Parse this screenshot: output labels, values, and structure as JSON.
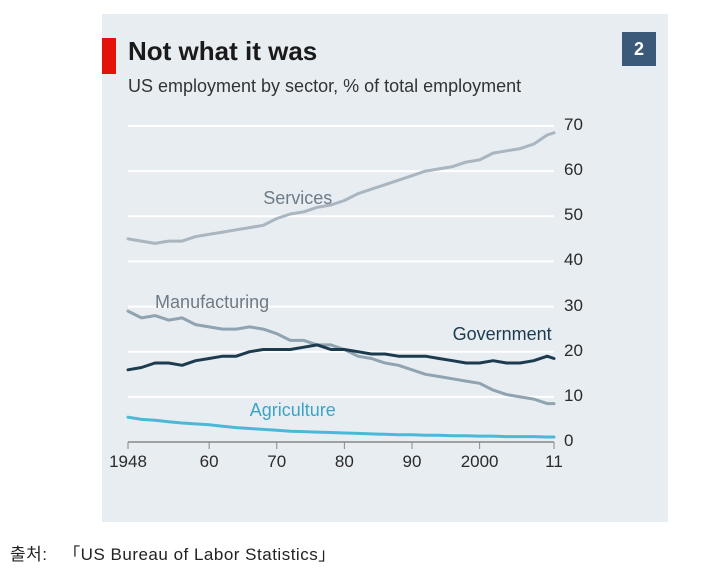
{
  "accent_red": "#e3120b",
  "badge_bg": "#3b5a7a",
  "chart": {
    "type": "line",
    "title": "Not what it was",
    "subtitle": "US employment by sector, % of total employment",
    "badge": "2",
    "background_color": "#e8edf2",
    "grid_color": "#ffffff",
    "axis_color": "#888888",
    "title_fontsize": 26,
    "subtitle_fontsize": 18,
    "tick_fontsize": 17,
    "label_fontsize": 18,
    "xlim": [
      1948,
      2011
    ],
    "ylim": [
      0,
      70
    ],
    "ytick_step": 10,
    "yticks": [
      0,
      10,
      20,
      30,
      40,
      50,
      60,
      70
    ],
    "xticks": [
      1948,
      1960,
      1970,
      1980,
      1990,
      2000,
      2011
    ],
    "xtick_labels": [
      "1948",
      "60",
      "70",
      "80",
      "90",
      "2000",
      "11"
    ],
    "line_width": 3,
    "series": {
      "services": {
        "label": "Services",
        "color": "#a9b5bf",
        "label_color": "#6e7b85",
        "label_pos": {
          "x": 1968,
          "y": 54
        },
        "points": [
          [
            1948,
            45
          ],
          [
            1950,
            44.5
          ],
          [
            1952,
            44
          ],
          [
            1954,
            44.5
          ],
          [
            1956,
            44.5
          ],
          [
            1958,
            45.5
          ],
          [
            1960,
            46
          ],
          [
            1962,
            46.5
          ],
          [
            1964,
            47
          ],
          [
            1966,
            47.5
          ],
          [
            1968,
            48
          ],
          [
            1970,
            49.5
          ],
          [
            1972,
            50.5
          ],
          [
            1974,
            51
          ],
          [
            1976,
            52
          ],
          [
            1978,
            52.5
          ],
          [
            1980,
            53.5
          ],
          [
            1982,
            55
          ],
          [
            1984,
            56
          ],
          [
            1986,
            57
          ],
          [
            1988,
            58
          ],
          [
            1990,
            59
          ],
          [
            1992,
            60
          ],
          [
            1994,
            60.5
          ],
          [
            1996,
            61
          ],
          [
            1998,
            62
          ],
          [
            2000,
            62.5
          ],
          [
            2002,
            64
          ],
          [
            2004,
            64.5
          ],
          [
            2006,
            65
          ],
          [
            2008,
            66
          ],
          [
            2010,
            68
          ],
          [
            2011,
            68.5
          ]
        ]
      },
      "manufacturing": {
        "label": "Manufacturing",
        "color": "#8fa3b0",
        "label_color": "#6e7b85",
        "label_pos": {
          "x": 1952,
          "y": 31
        },
        "points": [
          [
            1948,
            29
          ],
          [
            1950,
            27.5
          ],
          [
            1952,
            28
          ],
          [
            1954,
            27
          ],
          [
            1956,
            27.5
          ],
          [
            1958,
            26
          ],
          [
            1960,
            25.5
          ],
          [
            1962,
            25
          ],
          [
            1964,
            25
          ],
          [
            1966,
            25.5
          ],
          [
            1968,
            25
          ],
          [
            1970,
            24
          ],
          [
            1972,
            22.5
          ],
          [
            1974,
            22.5
          ],
          [
            1976,
            21.5
          ],
          [
            1978,
            21.5
          ],
          [
            1980,
            20.5
          ],
          [
            1982,
            19
          ],
          [
            1984,
            18.5
          ],
          [
            1986,
            17.5
          ],
          [
            1988,
            17
          ],
          [
            1990,
            16
          ],
          [
            1992,
            15
          ],
          [
            1994,
            14.5
          ],
          [
            1996,
            14
          ],
          [
            1998,
            13.5
          ],
          [
            2000,
            13
          ],
          [
            2002,
            11.5
          ],
          [
            2004,
            10.5
          ],
          [
            2006,
            10
          ],
          [
            2008,
            9.5
          ],
          [
            2010,
            8.5
          ],
          [
            2011,
            8.5
          ]
        ]
      },
      "government": {
        "label": "Government",
        "color": "#1d3b4f",
        "label_color": "#1d3b4f",
        "label_pos": {
          "x": 1996,
          "y": 24
        },
        "points": [
          [
            1948,
            16
          ],
          [
            1950,
            16.5
          ],
          [
            1952,
            17.5
          ],
          [
            1954,
            17.5
          ],
          [
            1956,
            17
          ],
          [
            1958,
            18
          ],
          [
            1960,
            18.5
          ],
          [
            1962,
            19
          ],
          [
            1964,
            19
          ],
          [
            1966,
            20
          ],
          [
            1968,
            20.5
          ],
          [
            1970,
            20.5
          ],
          [
            1972,
            20.5
          ],
          [
            1974,
            21
          ],
          [
            1976,
            21.5
          ],
          [
            1978,
            20.5
          ],
          [
            1980,
            20.5
          ],
          [
            1982,
            20
          ],
          [
            1984,
            19.5
          ],
          [
            1986,
            19.5
          ],
          [
            1988,
            19
          ],
          [
            1990,
            19
          ],
          [
            1992,
            19
          ],
          [
            1994,
            18.5
          ],
          [
            1996,
            18
          ],
          [
            1998,
            17.5
          ],
          [
            2000,
            17.5
          ],
          [
            2002,
            18
          ],
          [
            2004,
            17.5
          ],
          [
            2006,
            17.5
          ],
          [
            2008,
            18
          ],
          [
            2010,
            19
          ],
          [
            2011,
            18.5
          ]
        ]
      },
      "agriculture": {
        "label": "Agriculture",
        "color": "#4bb8d8",
        "label_color": "#3aa5c7",
        "label_pos": {
          "x": 1966,
          "y": 7
        },
        "points": [
          [
            1948,
            5.5
          ],
          [
            1950,
            5
          ],
          [
            1952,
            4.8
          ],
          [
            1954,
            4.5
          ],
          [
            1956,
            4.2
          ],
          [
            1958,
            4
          ],
          [
            1960,
            3.8
          ],
          [
            1962,
            3.5
          ],
          [
            1964,
            3.2
          ],
          [
            1966,
            3
          ],
          [
            1968,
            2.8
          ],
          [
            1970,
            2.6
          ],
          [
            1972,
            2.4
          ],
          [
            1974,
            2.3
          ],
          [
            1976,
            2.2
          ],
          [
            1978,
            2.1
          ],
          [
            1980,
            2
          ],
          [
            1982,
            1.9
          ],
          [
            1984,
            1.8
          ],
          [
            1986,
            1.7
          ],
          [
            1988,
            1.6
          ],
          [
            1990,
            1.6
          ],
          [
            1992,
            1.5
          ],
          [
            1994,
            1.5
          ],
          [
            1996,
            1.4
          ],
          [
            1998,
            1.4
          ],
          [
            2000,
            1.3
          ],
          [
            2002,
            1.3
          ],
          [
            2004,
            1.2
          ],
          [
            2006,
            1.2
          ],
          [
            2008,
            1.2
          ],
          [
            2010,
            1.1
          ],
          [
            2011,
            1.1
          ]
        ]
      }
    }
  },
  "source": {
    "prefix": "출처:",
    "text": "「US Bureau of Labor Statistics」"
  }
}
